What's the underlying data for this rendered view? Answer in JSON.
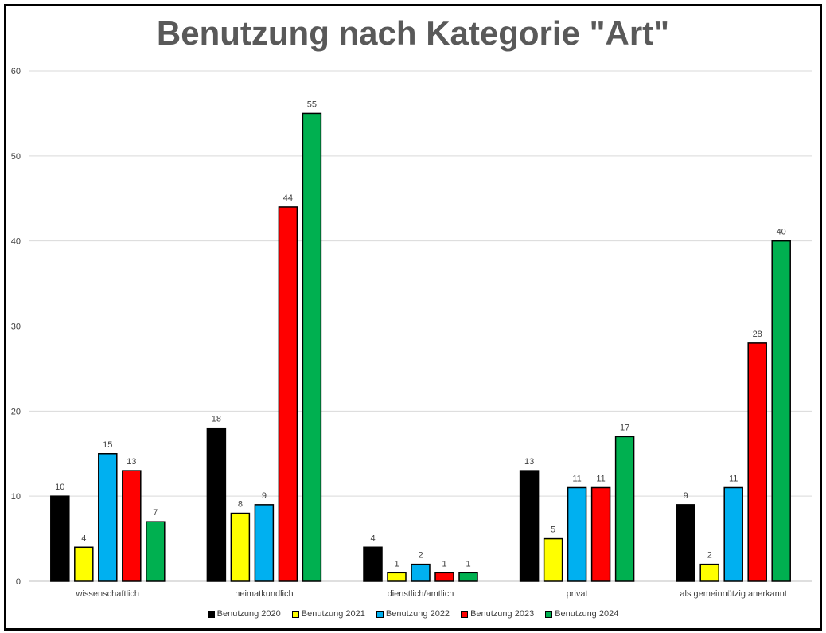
{
  "chart_data": {
    "type": "bar",
    "title": "Benutzung nach Kategorie \"Art\"",
    "xlabel": "",
    "ylabel": "",
    "ylim": [
      0,
      60
    ],
    "yticks": [
      0,
      10,
      20,
      30,
      40,
      50,
      60
    ],
    "grid": true,
    "legend_position": "bottom",
    "categories": [
      "wissenschaftlich",
      "heimatkundlich",
      "dienstlich/amtlich",
      "privat",
      "als gemeinnützig anerkannt"
    ],
    "series": [
      {
        "name": "Benutzung 2020",
        "color": "#000000",
        "values": [
          10,
          18,
          4,
          13,
          9
        ]
      },
      {
        "name": "Benutzung 2021",
        "color": "#ffff00",
        "values": [
          4,
          8,
          1,
          5,
          2
        ]
      },
      {
        "name": "Benutzung 2022",
        "color": "#00b0f0",
        "values": [
          15,
          9,
          2,
          11,
          11
        ]
      },
      {
        "name": "Benutzung 2023",
        "color": "#ff0000",
        "values": [
          13,
          44,
          1,
          11,
          28
        ]
      },
      {
        "name": "Benutzung 2024",
        "color": "#00b050",
        "values": [
          7,
          55,
          1,
          17,
          40
        ]
      }
    ]
  }
}
